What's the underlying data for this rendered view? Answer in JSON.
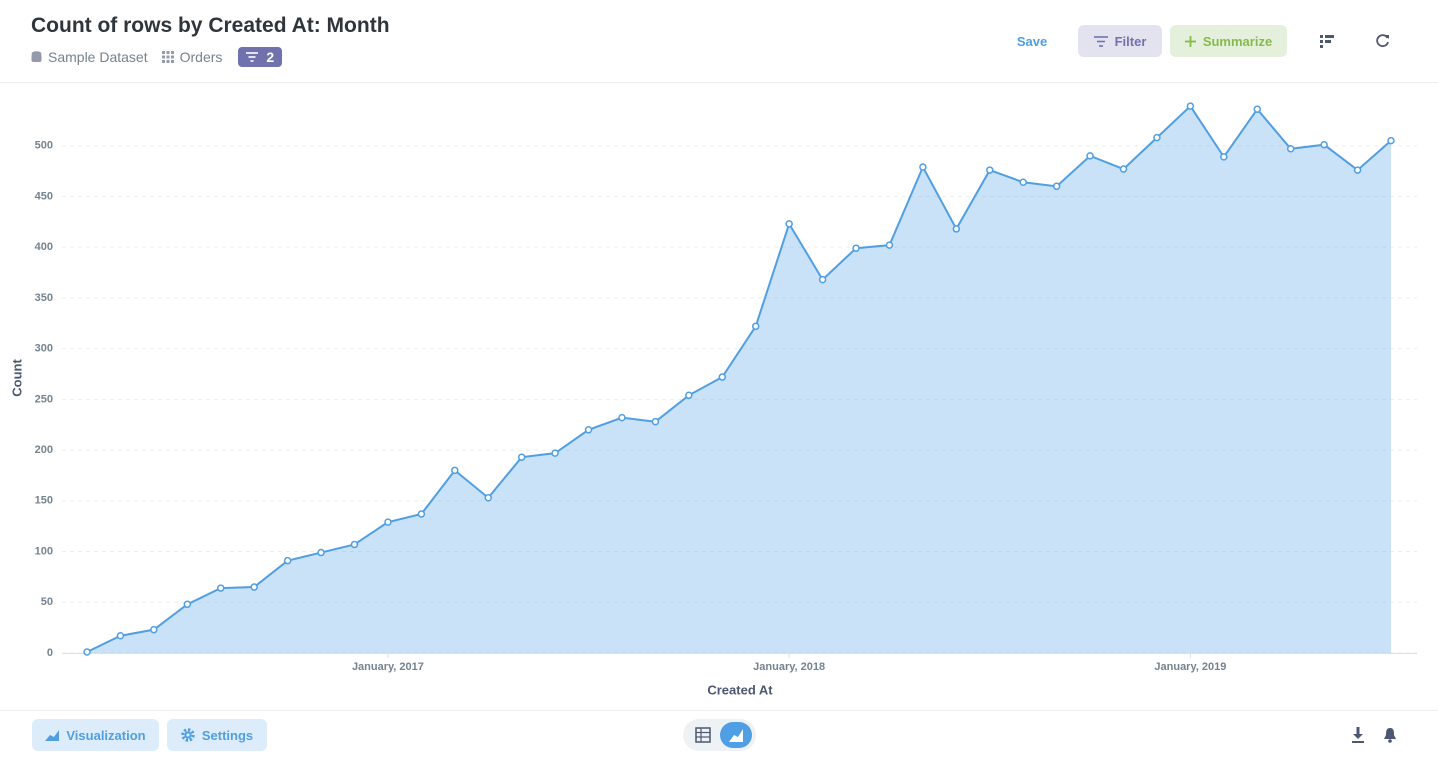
{
  "header": {
    "dataset": "Sample Dataset",
    "table": "Orders",
    "filter_count": 2,
    "save": "Save",
    "filter": "Filter",
    "summarize": "Summarize"
  },
  "footer": {
    "visualization": "Visualization",
    "settings": "Settings"
  },
  "chart_data": {
    "type": "area",
    "title": "Count of rows by Created At: Month",
    "x_label": "Created At",
    "y_label": "Count",
    "categories": [
      null,
      null,
      null,
      null,
      null,
      null,
      null,
      null,
      null,
      "January, 2017",
      null,
      null,
      null,
      null,
      null,
      null,
      null,
      null,
      null,
      null,
      null,
      "January, 2018",
      null,
      null,
      null,
      null,
      null,
      null,
      null,
      null,
      null,
      null,
      null,
      "January, 2019",
      null,
      null,
      null,
      null,
      null,
      null
    ],
    "values": [
      1,
      17,
      23,
      48,
      64,
      65,
      91,
      99,
      107,
      129,
      137,
      180,
      153,
      193,
      197,
      220,
      232,
      228,
      254,
      272,
      322,
      423,
      368,
      399,
      402,
      479,
      418,
      476,
      464,
      460,
      490,
      477,
      508,
      539,
      489,
      536,
      497,
      501,
      476,
      505
    ],
    "color": "#509ee3",
    "ylim": [
      0,
      550
    ],
    "yticks": [
      0,
      50,
      100,
      150,
      200,
      250,
      300,
      350,
      400,
      450,
      500
    ],
    "grid": true
  }
}
